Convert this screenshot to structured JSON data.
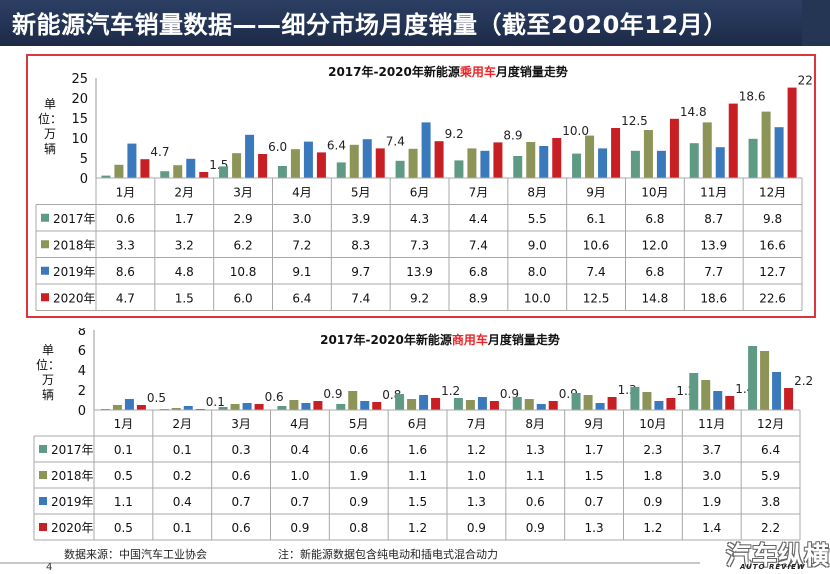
{
  "page": {
    "title": "新能源汽车销量数据——细分市场月度销量（截至2020年12月）",
    "source": "数据来源：中国汽车工业协会",
    "note": "注：新能源数据包含纯电动和插电式混合动力",
    "page_number": "4",
    "logo_text": "汽车纵横",
    "logo_subtext": "AUTO REVIEW",
    "colors": {
      "header": "#233354",
      "highlight_frame": "#d9363e"
    }
  },
  "chart_data": [
    {
      "type": "bar",
      "title_parts": [
        "2017年-2020年新能源",
        "乘用车",
        "月度销量走势"
      ],
      "title_highlight_color": "#e8262a",
      "ylabel": "单位：万辆",
      "ylim": [
        0,
        25
      ],
      "yticks": [
        "0",
        "5",
        "10",
        "15",
        "20",
        "25"
      ],
      "categories": [
        "1月",
        "2月",
        "3月",
        "4月",
        "5月",
        "6月",
        "7月",
        "8月",
        "9月",
        "10月",
        "11月",
        "12月"
      ],
      "series": [
        {
          "name": "2017年",
          "color": "#5f9a85",
          "values": [
            0.6,
            1.7,
            2.9,
            3.0,
            3.9,
            4.3,
            4.4,
            5.5,
            6.1,
            6.8,
            8.7,
            9.8
          ]
        },
        {
          "name": "2018年",
          "color": "#8c9458",
          "values": [
            3.3,
            3.2,
            6.2,
            7.2,
            8.3,
            7.3,
            7.4,
            9.0,
            10.6,
            12.0,
            13.9,
            16.6
          ]
        },
        {
          "name": "2019年",
          "color": "#3b79bd",
          "values": [
            8.6,
            4.8,
            10.8,
            9.1,
            9.7,
            13.9,
            6.8,
            8.0,
            7.4,
            6.8,
            7.7,
            12.7
          ]
        },
        {
          "name": "2020年",
          "color": "#c81f25",
          "values": [
            4.7,
            1.5,
            6.0,
            6.4,
            7.4,
            9.2,
            8.9,
            10.0,
            12.5,
            14.8,
            18.6,
            22.6
          ]
        }
      ],
      "data_labels_series": "2020年",
      "table": true,
      "grid": false
    },
    {
      "type": "bar",
      "title_parts": [
        "2017年-2020年新能源",
        "商用车",
        "月度销量走势"
      ],
      "title_highlight_color": "#e8262a",
      "ylabel": "单位：万辆",
      "ylim": [
        0,
        8
      ],
      "yticks": [
        "0",
        "2",
        "4",
        "6",
        "8"
      ],
      "categories": [
        "1月",
        "2月",
        "3月",
        "4月",
        "5月",
        "6月",
        "7月",
        "8月",
        "9月",
        "10月",
        "11月",
        "12月"
      ],
      "series": [
        {
          "name": "2017年",
          "color": "#5f9a85",
          "values": [
            0.1,
            0.1,
            0.3,
            0.4,
            0.6,
            1.6,
            1.2,
            1.3,
            1.7,
            2.3,
            3.7,
            6.4
          ]
        },
        {
          "name": "2018年",
          "color": "#8c9458",
          "values": [
            0.5,
            0.2,
            0.6,
            1.0,
            1.9,
            1.1,
            1.0,
            1.1,
            1.5,
            1.8,
            3.0,
            5.9
          ]
        },
        {
          "name": "2019年",
          "color": "#3b79bd",
          "values": [
            1.1,
            0.4,
            0.7,
            0.7,
            0.9,
            1.5,
            1.3,
            0.6,
            0.7,
            0.9,
            1.9,
            3.8
          ]
        },
        {
          "name": "2020年",
          "color": "#c81f25",
          "values": [
            0.5,
            0.1,
            0.6,
            0.9,
            0.8,
            1.2,
            0.9,
            0.9,
            1.3,
            1.2,
            1.4,
            2.2
          ]
        }
      ],
      "data_labels_series": "2020年",
      "table": true,
      "grid": false
    }
  ]
}
